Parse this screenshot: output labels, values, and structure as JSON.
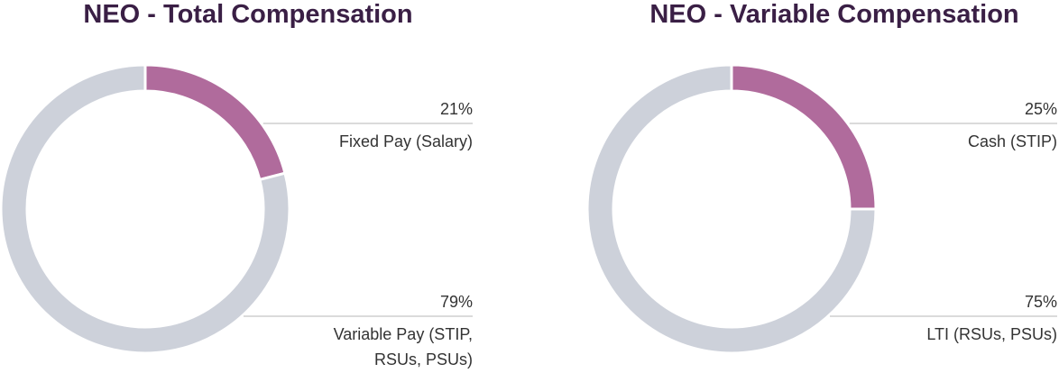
{
  "chart_data": [
    {
      "type": "pie",
      "title": "NEO - Total Compensation",
      "categories": [
        "Fixed Pay (Salary)",
        "Variable Pay (STIP, RSUs, PSUs)"
      ],
      "values": [
        21,
        79
      ],
      "value_labels": [
        "21%",
        "79%"
      ],
      "colors": [
        "#b06b9c",
        "#cdd1da"
      ]
    },
    {
      "type": "pie",
      "title": "NEO - Variable Compensation",
      "categories": [
        "Cash (STIP)",
        "LTI (RSUs, PSUs)"
      ],
      "values": [
        25,
        75
      ],
      "value_labels": [
        "25%",
        "75%"
      ],
      "colors": [
        "#b06b9c",
        "#cdd1da"
      ]
    }
  ]
}
